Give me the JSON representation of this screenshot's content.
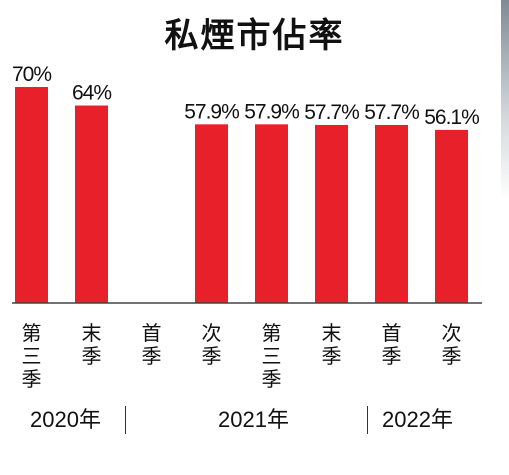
{
  "title": "私煙市佔率",
  "chart_data": {
    "type": "bar",
    "title": "私煙市佔率",
    "categories": [
      "第三季",
      "末季",
      "首季",
      "次季",
      "第三季",
      "末季",
      "首季",
      "次季"
    ],
    "values": [
      70,
      64,
      null,
      57.9,
      57.9,
      57.7,
      57.7,
      56.1
    ],
    "value_labels": [
      "70%",
      "64%",
      "",
      "57.9%",
      "57.9%",
      "57.7%",
      "57.7%",
      "56.1%"
    ],
    "groups": [
      {
        "label": "2020年",
        "categories": [
          "第三季",
          "末季"
        ]
      },
      {
        "label": "2021年",
        "categories": [
          "首季",
          "次季",
          "第三季",
          "末季"
        ]
      },
      {
        "label": "2022年",
        "categories": [
          "首季",
          "次季"
        ]
      }
    ],
    "unit": "%",
    "ylim": [
      0,
      75
    ],
    "color": "#e8202a",
    "grid": false
  }
}
